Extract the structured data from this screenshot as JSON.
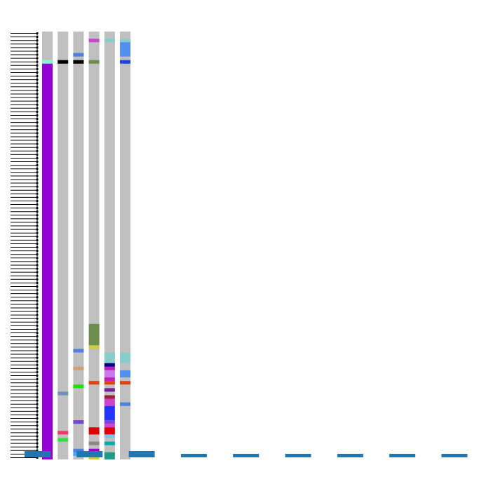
{
  "chart_data": {
    "type": "heatmap",
    "description_free": true,
    "rows": 120,
    "columns": [
      {
        "name": "",
        "background": "#c0c0c0",
        "segments": [
          {
            "start": 8,
            "end": 9,
            "color": "#7fffd4"
          },
          {
            "start": 9,
            "end": 120,
            "color": "#9400d3"
          }
        ]
      },
      {
        "name": "",
        "background": "#c0c0c0",
        "segments": [
          {
            "start": 8,
            "end": 9,
            "color": "#000000"
          },
          {
            "start": 101,
            "end": 102,
            "color": "#6f8fbf"
          },
          {
            "start": 112,
            "end": 113,
            "color": "#ff3366"
          },
          {
            "start": 114,
            "end": 115,
            "color": "#33dd44"
          }
        ]
      },
      {
        "name": "",
        "background": "#c0c0c0",
        "segments": [
          {
            "start": 6,
            "end": 7,
            "color": "#4f7fdf"
          },
          {
            "start": 8,
            "end": 9,
            "color": "#000000"
          },
          {
            "start": 89,
            "end": 90,
            "color": "#4f7fdf"
          },
          {
            "start": 94,
            "end": 95,
            "color": "#d2a070"
          },
          {
            "start": 99,
            "end": 100,
            "color": "#22dd11"
          },
          {
            "start": 109,
            "end": 110,
            "color": "#7744dd"
          },
          {
            "start": 117,
            "end": 118,
            "color": "#4f7fdf"
          },
          {
            "start": 118,
            "end": 119,
            "color": "#44aaee"
          }
        ]
      },
      {
        "name": "",
        "background": "#c0c0c0",
        "segments": [
          {
            "start": 2,
            "end": 3,
            "color": "#cc44cc"
          },
          {
            "start": 8,
            "end": 9,
            "color": "#6b8e4e"
          },
          {
            "start": 82,
            "end": 88,
            "color": "#6b8e4e"
          },
          {
            "start": 88,
            "end": 89,
            "color": "#cccc44"
          },
          {
            "start": 98,
            "end": 99,
            "color": "#dd4411"
          },
          {
            "start": 111,
            "end": 113,
            "color": "#dd0000"
          },
          {
            "start": 115,
            "end": 116,
            "color": "#888888"
          },
          {
            "start": 117,
            "end": 118,
            "color": "#9400d3"
          },
          {
            "start": 118,
            "end": 119,
            "color": "#cc44cc"
          },
          {
            "start": 119,
            "end": 120,
            "color": "#cccc44"
          }
        ]
      },
      {
        "name": "",
        "background": "#c0c0c0",
        "segments": [
          {
            "start": 2,
            "end": 3,
            "color": "#88cccc"
          },
          {
            "start": 90,
            "end": 93,
            "color": "#88cccc"
          },
          {
            "start": 93,
            "end": 94,
            "color": "#000088"
          },
          {
            "start": 94,
            "end": 95,
            "color": "#bb22bb"
          },
          {
            "start": 95,
            "end": 97,
            "color": "#cc77ee"
          },
          {
            "start": 97,
            "end": 98,
            "color": "#bb22bb"
          },
          {
            "start": 98,
            "end": 99,
            "color": "#dd4411"
          },
          {
            "start": 100,
            "end": 101,
            "color": "#772299"
          },
          {
            "start": 102,
            "end": 103,
            "color": "#992233"
          },
          {
            "start": 103,
            "end": 105,
            "color": "#cc44cc"
          },
          {
            "start": 105,
            "end": 109,
            "color": "#2233ff"
          },
          {
            "start": 109,
            "end": 110,
            "color": "#7744dd"
          },
          {
            "start": 110,
            "end": 111,
            "color": "#cc44cc"
          },
          {
            "start": 111,
            "end": 113,
            "color": "#dd0000"
          },
          {
            "start": 113,
            "end": 114,
            "color": "#88bbee"
          },
          {
            "start": 115,
            "end": 116,
            "color": "#00aaaa"
          },
          {
            "start": 118,
            "end": 120,
            "color": "#229988"
          }
        ]
      },
      {
        "name": "",
        "background": "#c0c0c0",
        "segments": [
          {
            "start": 2,
            "end": 3,
            "color": "#88cccc"
          },
          {
            "start": 3,
            "end": 7,
            "color": "#4f8fef"
          },
          {
            "start": 8,
            "end": 9,
            "color": "#1a44dd"
          },
          {
            "start": 90,
            "end": 93,
            "color": "#88cccc"
          },
          {
            "start": 95,
            "end": 97,
            "color": "#4f8fef"
          },
          {
            "start": 98,
            "end": 99,
            "color": "#dd4411"
          },
          {
            "start": 104,
            "end": 105,
            "color": "#4f7fdf"
          }
        ]
      }
    ],
    "legend_swatches": [
      {
        "color": "#1f77b4"
      },
      {
        "color": "#1f77b4"
      },
      {
        "color": "#1f77b4"
      },
      {
        "color": "#1f77b4"
      },
      {
        "color": "#1f77b4"
      },
      {
        "color": "#1f77b4"
      },
      {
        "color": "#1f77b4"
      },
      {
        "color": "#1f77b4"
      },
      {
        "color": "#1f77b4"
      }
    ],
    "dendrogram": {
      "leaves": 120,
      "line_color": "#000000"
    }
  }
}
